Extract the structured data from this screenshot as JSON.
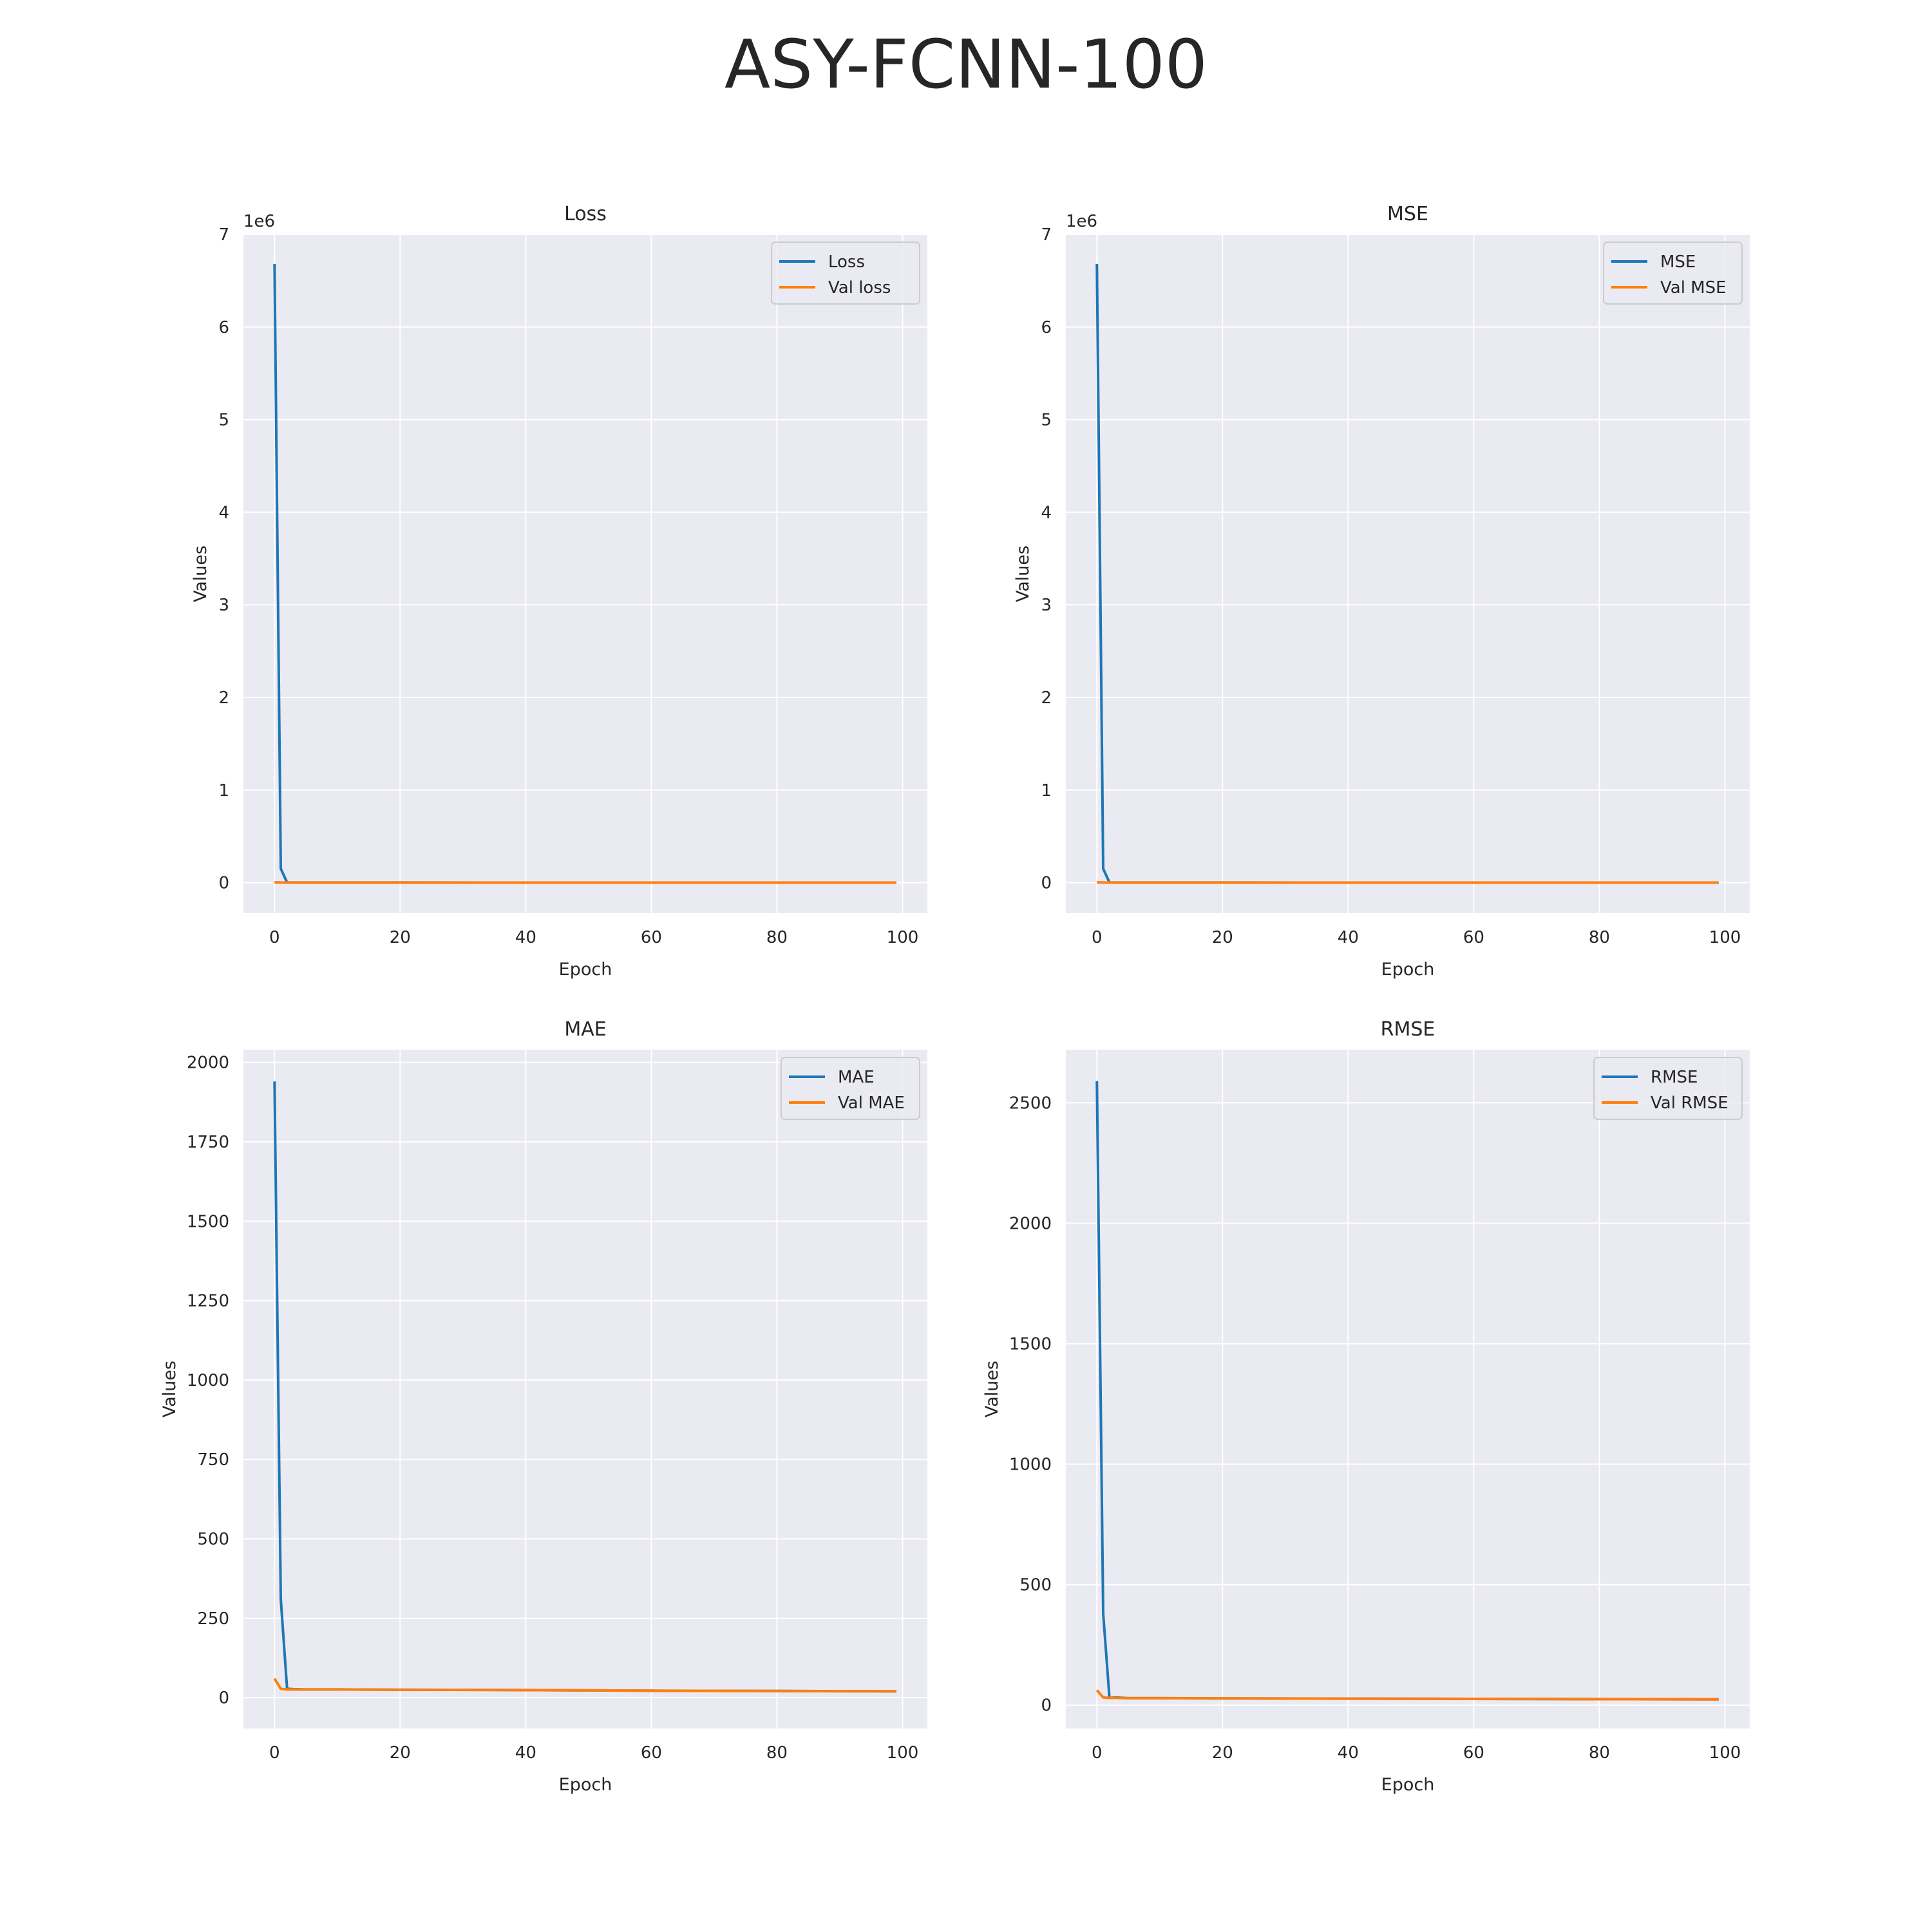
{
  "title": "ASY-FCNN-100",
  "colors": {
    "train": "#1f77b4",
    "val": "#ff7f0e",
    "axes_bg": "#eaeaf2",
    "grid": "#ffffff",
    "text": "#262626"
  },
  "chart_data": [
    {
      "type": "line",
      "title": "Loss",
      "xlabel": "Epoch",
      "ylabel": "Values",
      "xlim": [
        -4.95,
        103.95
      ],
      "ylim": [
        -330000,
        7000000
      ],
      "xticks": [
        0,
        20,
        40,
        60,
        80,
        100
      ],
      "yticks": [
        0,
        1000000,
        2000000,
        3000000,
        4000000,
        5000000,
        6000000,
        7000000
      ],
      "ytick_labels": [
        "0",
        "1",
        "2",
        "3",
        "4",
        "5",
        "6",
        "7"
      ],
      "offset_text": "1e6",
      "grid": true,
      "legend_position": "upper-right",
      "series": [
        {
          "name": "Loss",
          "color": "#1f77b4",
          "x": [
            0,
            1,
            2,
            3,
            5,
            10,
            20,
            40,
            60,
            80,
            99
          ],
          "values": [
            6680000,
            150000,
            1800,
            1000,
            900,
            850,
            800,
            720,
            680,
            640,
            600
          ]
        },
        {
          "name": "Val loss",
          "color": "#ff7f0e",
          "x": [
            0,
            1,
            2,
            3,
            5,
            10,
            20,
            40,
            60,
            80,
            99
          ],
          "values": [
            3900,
            1200,
            950,
            900,
            880,
            850,
            800,
            720,
            680,
            640,
            600
          ]
        }
      ]
    },
    {
      "type": "line",
      "title": "MSE",
      "xlabel": "Epoch",
      "ylabel": "Values",
      "xlim": [
        -4.95,
        103.95
      ],
      "ylim": [
        -330000,
        7000000
      ],
      "xticks": [
        0,
        20,
        40,
        60,
        80,
        100
      ],
      "yticks": [
        0,
        1000000,
        2000000,
        3000000,
        4000000,
        5000000,
        6000000,
        7000000
      ],
      "ytick_labels": [
        "0",
        "1",
        "2",
        "3",
        "4",
        "5",
        "6",
        "7"
      ],
      "offset_text": "1e6",
      "grid": true,
      "legend_position": "upper-right",
      "series": [
        {
          "name": "MSE",
          "color": "#1f77b4",
          "x": [
            0,
            1,
            2,
            3,
            5,
            10,
            20,
            40,
            60,
            80,
            99
          ],
          "values": [
            6680000,
            150000,
            1800,
            1000,
            900,
            850,
            800,
            720,
            680,
            640,
            600
          ]
        },
        {
          "name": "Val MSE",
          "color": "#ff7f0e",
          "x": [
            0,
            1,
            2,
            3,
            5,
            10,
            20,
            40,
            60,
            80,
            99
          ],
          "values": [
            3900,
            1200,
            950,
            900,
            880,
            850,
            800,
            720,
            680,
            640,
            600
          ]
        }
      ]
    },
    {
      "type": "line",
      "title": "MAE",
      "xlabel": "Epoch",
      "ylabel": "Values",
      "xlim": [
        -4.95,
        103.95
      ],
      "ylim": [
        -97,
        2040
      ],
      "xticks": [
        0,
        20,
        40,
        60,
        80,
        100
      ],
      "yticks": [
        0,
        250,
        500,
        750,
        1000,
        1250,
        1500,
        1750,
        2000
      ],
      "ytick_labels": [
        "0",
        "250",
        "500",
        "750",
        "1000",
        "1250",
        "1500",
        "1750",
        "2000"
      ],
      "offset_text": "",
      "grid": true,
      "legend_position": "upper-right",
      "series": [
        {
          "name": "MAE",
          "color": "#1f77b4",
          "x": [
            0,
            1,
            2,
            3,
            5,
            10,
            20,
            40,
            60,
            80,
            99
          ],
          "values": [
            1940,
            310,
            28,
            27,
            26,
            26,
            25,
            24,
            22,
            21,
            20
          ]
        },
        {
          "name": "Val MAE",
          "color": "#ff7f0e",
          "x": [
            0,
            1,
            2,
            3,
            5,
            10,
            20,
            40,
            60,
            80,
            99
          ],
          "values": [
            60,
            28,
            26,
            26,
            26,
            26,
            25,
            24,
            22,
            21,
            20
          ]
        }
      ]
    },
    {
      "type": "line",
      "title": "RMSE",
      "xlabel": "Epoch",
      "ylabel": "Values",
      "xlim": [
        -4.95,
        103.95
      ],
      "ylim": [
        -97,
        2720
      ],
      "xticks": [
        0,
        20,
        40,
        60,
        80,
        100
      ],
      "yticks": [
        0,
        500,
        1000,
        1500,
        2000,
        2500
      ],
      "ytick_labels": [
        "0",
        "500",
        "1000",
        "1500",
        "2000",
        "2500"
      ],
      "offset_text": "",
      "grid": true,
      "legend_position": "upper-right",
      "series": [
        {
          "name": "RMSE",
          "color": "#1f77b4",
          "x": [
            0,
            1,
            2,
            3,
            5,
            10,
            20,
            40,
            60,
            80,
            99
          ],
          "values": [
            2590,
            380,
            30,
            32,
            29,
            29,
            28,
            27,
            26,
            25,
            24
          ]
        },
        {
          "name": "Val RMSE",
          "color": "#ff7f0e",
          "x": [
            0,
            1,
            2,
            3,
            5,
            10,
            20,
            40,
            60,
            80,
            99
          ],
          "values": [
            62,
            32,
            30,
            30,
            29,
            29,
            28,
            27,
            26,
            25,
            24
          ]
        }
      ]
    }
  ]
}
